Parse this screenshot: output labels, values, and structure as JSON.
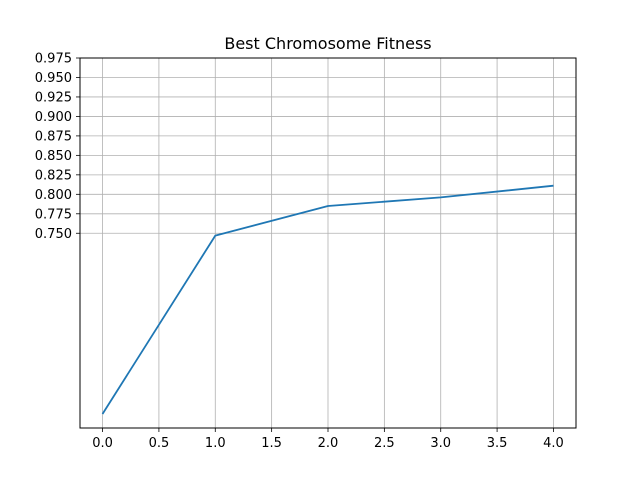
{
  "chart_data": {
    "type": "line",
    "title": "Best Chromosome Fitness",
    "xlabel": "",
    "ylabel": "",
    "grid": true,
    "xlim": [
      -0.2,
      4.2
    ],
    "ylim": [
      0.5,
      0.975
    ],
    "x_ticks": [
      "0.0",
      "0.5",
      "1.0",
      "1.5",
      "2.0",
      "2.5",
      "3.0",
      "3.5",
      "4.0"
    ],
    "y_ticks": [
      "0.750",
      "0.775",
      "0.800",
      "0.825",
      "0.850",
      "0.875",
      "0.900",
      "0.925",
      "0.950",
      "0.975"
    ],
    "series": [
      {
        "color": "#1f77b4",
        "x": [
          0,
          1,
          2,
          3,
          4
        ],
        "y": [
          0.518,
          0.747,
          0.785,
          0.796,
          0.811
        ]
      }
    ]
  }
}
